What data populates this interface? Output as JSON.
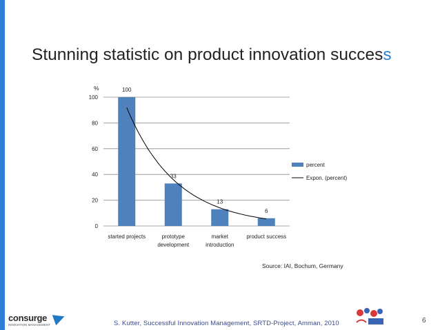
{
  "slide": {
    "title_main": "Stunning statistic on product innovation succes",
    "title_last": "s",
    "source": "Source: IAI, Bochum, Germany",
    "footer": "S. Kutter, Successful Innovation Management,  SRTD-Project, Amman,  2010",
    "page_number": "6",
    "logo_left_brand": "consurge",
    "logo_left_tagline": "INNOVATION MANAGEMENT",
    "accent_color": "#2f7fd8"
  },
  "chart_data": {
    "type": "bar",
    "categories": [
      "started projects",
      "prototype development",
      "market introduction",
      "product success"
    ],
    "category_lines": [
      [
        "started projects"
      ],
      [
        "prototype",
        "development"
      ],
      [
        "market",
        "introduction"
      ],
      [
        "product success"
      ]
    ],
    "values": [
      100,
      33,
      13,
      6
    ],
    "data_labels": [
      "100",
      "33",
      "13",
      "6"
    ],
    "ylabel": "%",
    "ylim": [
      0,
      100
    ],
    "yticks": [
      "0",
      "20",
      "40",
      "60",
      "80",
      "100"
    ],
    "grid": true,
    "bar_color": "#4f81bd",
    "trendline": {
      "type": "exponential",
      "name": "Expon. (percent)",
      "color": "#000000"
    },
    "legend": {
      "position": "right",
      "entries": [
        "percent",
        "Expon. (percent)"
      ]
    }
  }
}
